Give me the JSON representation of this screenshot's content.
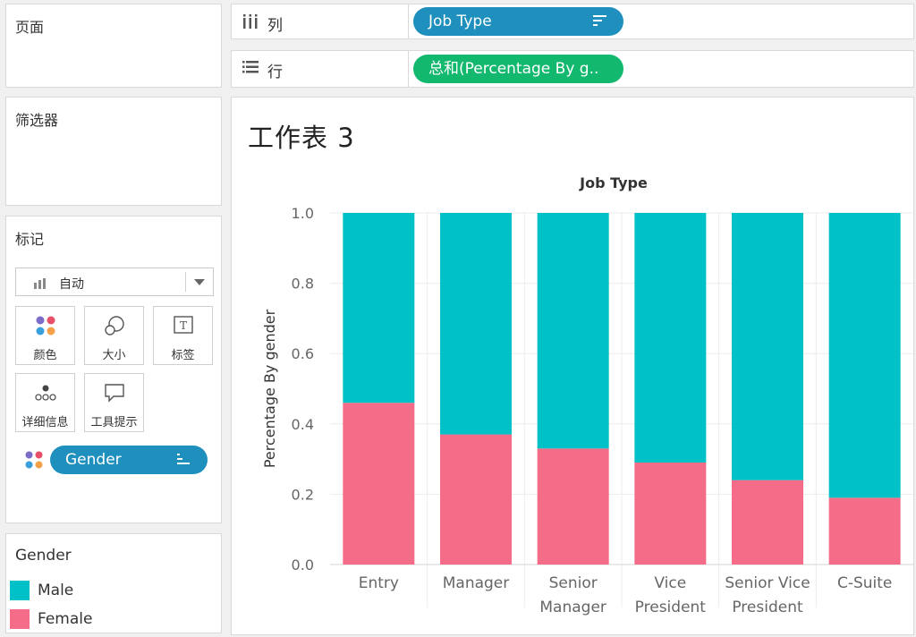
{
  "pages_panel": {
    "title": "页面"
  },
  "filters_panel": {
    "title": "筛选器"
  },
  "shelves": {
    "columns_label": "列",
    "columns_pill": "Job Type",
    "rows_label": "行",
    "rows_pill": "总和(Percentage By g.."
  },
  "marks_panel": {
    "title": "标记",
    "mark_type": "自动",
    "buttons": [
      {
        "label": "颜色",
        "icon": "color-dots-icon"
      },
      {
        "label": "大小",
        "icon": "size-circles-icon"
      },
      {
        "label": "标签",
        "icon": "text-label-icon"
      },
      {
        "label": "详细信息",
        "icon": "detail-dots-icon"
      },
      {
        "label": "工具提示",
        "icon": "tooltip-bubble-icon"
      }
    ],
    "gender_pill": "Gender"
  },
  "legend": {
    "title": "Gender",
    "items": [
      {
        "label": "Male",
        "color": "#00c1c8"
      },
      {
        "label": "Female",
        "color": "#f46c88"
      }
    ]
  },
  "sheet": {
    "title": "工作表 3"
  },
  "chart_data": {
    "type": "bar",
    "stacked": true,
    "header": "Job Type",
    "ylabel": "Percentage By gender",
    "ylim": [
      0,
      1.0
    ],
    "yticks": [
      "1.0",
      "0.8",
      "0.6",
      "0.4",
      "0.2",
      "0.0"
    ],
    "categories": [
      [
        "Entry"
      ],
      [
        "Manager"
      ],
      [
        "Senior",
        "Manager"
      ],
      [
        "Vice",
        "President"
      ],
      [
        "Senior Vice",
        "President"
      ],
      [
        "C-Suite"
      ]
    ],
    "series": [
      {
        "name": "Female",
        "color": "#f46c88",
        "values": [
          0.46,
          0.37,
          0.33,
          0.29,
          0.24,
          0.19
        ]
      },
      {
        "name": "Male",
        "color": "#00c1c8",
        "values": [
          0.54,
          0.63,
          0.67,
          0.71,
          0.76,
          0.81
        ]
      }
    ],
    "grid": true
  }
}
